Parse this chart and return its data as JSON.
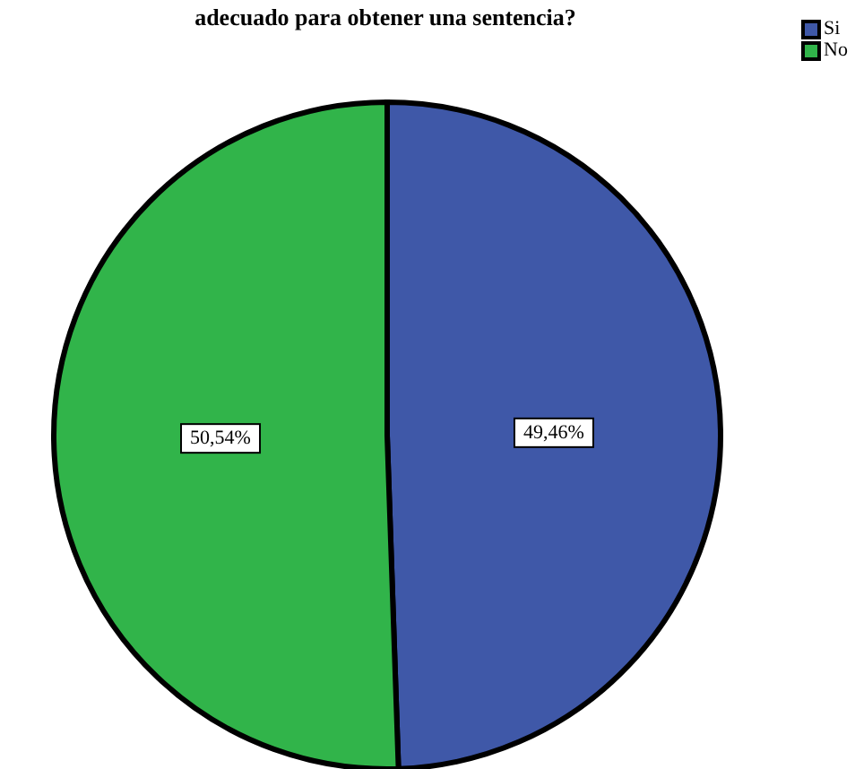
{
  "chart_data": {
    "type": "pie",
    "title": "adecuado para obtener una sentencia?",
    "categories": [
      "Si",
      "No"
    ],
    "values": [
      49.46,
      50.54
    ],
    "colors": [
      "#3f58a8",
      "#31b44a"
    ],
    "value_labels": [
      "49,46%",
      "50,54%"
    ],
    "legend": "top right"
  }
}
